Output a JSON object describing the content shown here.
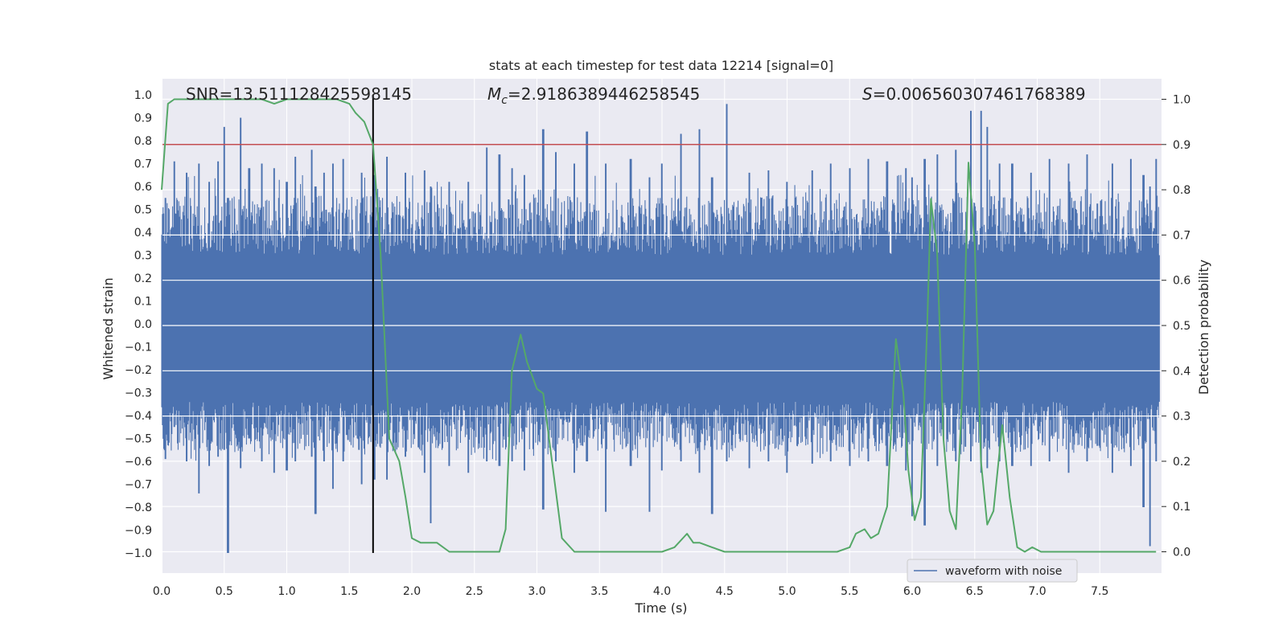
{
  "chart_data": {
    "type": "line",
    "title": "stats at each timestep for test data 12214 [signal=0]",
    "xlabel": "Time (s)",
    "ylabel": "Whitened strain",
    "y2label": "Detection probability",
    "xlim": [
      0,
      8
    ],
    "ylim": [
      -1.1,
      1.05
    ],
    "y2lim": [
      -0.045,
      1.045
    ],
    "xticks": [
      "0.0",
      "0.5",
      "1.0",
      "1.5",
      "2.0",
      "2.5",
      "3.0",
      "3.5",
      "4.0",
      "4.5",
      "5.0",
      "5.5",
      "6.0",
      "6.5",
      "7.0",
      "7.5"
    ],
    "yticks": [
      "1.0",
      "0.9",
      "0.8",
      "0.7",
      "0.6",
      "0.5",
      "0.4",
      "0.3",
      "0.2",
      "0.1",
      "0.0",
      "-0.1",
      "-0.2",
      "-0.3",
      "-0.4",
      "-0.5",
      "-0.6",
      "-0.7",
      "-0.8",
      "-0.9",
      "-1.0"
    ],
    "y2ticks": [
      "1.0",
      "0.9",
      "0.8",
      "0.7",
      "0.6",
      "0.5",
      "0.4",
      "0.3",
      "0.2",
      "0.1",
      "0.0"
    ],
    "grid": true,
    "legend": {
      "position": "lower-right",
      "entries": [
        "waveform with noise"
      ]
    },
    "annotations": {
      "snr": "SNR=13.511128425598145",
      "mc_symbol": "M",
      "mc_sub": "c",
      "mc_value": "=2.9186389446258545",
      "s_symbol": "S",
      "s_value": "=0.006560307461768389"
    },
    "threshold_line": {
      "axis": "right",
      "value": 0.9,
      "color": "#c44e52"
    },
    "marker_line": {
      "x": 1.69,
      "ymin": -1.0,
      "ymax": 1.0,
      "color": "#000000"
    },
    "colors": {
      "waveform": "#4c72b0",
      "probability": "#55a868",
      "background": "#eaeaf2",
      "grid": "#ffffff"
    },
    "series": [
      {
        "name": "waveform with noise",
        "axis": "left",
        "envelope_peaks": [
          {
            "t": 0.03,
            "upper": 0.55,
            "lower": -0.59
          },
          {
            "t": 0.1,
            "upper": 0.71,
            "lower": -0.45
          },
          {
            "t": 0.2,
            "upper": 0.66,
            "lower": -0.6
          },
          {
            "t": 0.3,
            "upper": 0.7,
            "lower": -0.74
          },
          {
            "t": 0.38,
            "upper": 0.62,
            "lower": -0.62
          },
          {
            "t": 0.45,
            "upper": 0.71,
            "lower": -0.58
          },
          {
            "t": 0.5,
            "upper": 0.86,
            "lower": -0.55
          },
          {
            "t": 0.53,
            "upper": 0.55,
            "lower": -1.0
          },
          {
            "t": 0.63,
            "upper": 0.9,
            "lower": -0.63
          },
          {
            "t": 0.7,
            "upper": 0.68,
            "lower": -0.5
          },
          {
            "t": 0.8,
            "upper": 0.7,
            "lower": -0.6
          },
          {
            "t": 0.9,
            "upper": 0.68,
            "lower": -0.65
          },
          {
            "t": 1.0,
            "upper": 0.62,
            "lower": -0.64
          },
          {
            "t": 1.07,
            "upper": 0.73,
            "lower": -0.6
          },
          {
            "t": 1.2,
            "upper": 0.76,
            "lower": -0.58
          },
          {
            "t": 1.23,
            "upper": 0.6,
            "lower": -0.83
          },
          {
            "t": 1.3,
            "upper": 0.66,
            "lower": -0.6
          },
          {
            "t": 1.37,
            "upper": 0.7,
            "lower": -0.72
          },
          {
            "t": 1.45,
            "upper": 0.72,
            "lower": -0.6
          },
          {
            "t": 1.6,
            "upper": 0.66,
            "lower": -0.7
          },
          {
            "t": 1.7,
            "upper": 0.65,
            "lower": -0.68
          },
          {
            "t": 1.8,
            "upper": 0.73,
            "lower": -0.68
          },
          {
            "t": 1.95,
            "upper": 0.66,
            "lower": -0.58
          },
          {
            "t": 2.1,
            "upper": 0.67,
            "lower": -0.65
          },
          {
            "t": 2.15,
            "upper": 0.6,
            "lower": -0.87
          },
          {
            "t": 2.3,
            "upper": 0.62,
            "lower": -0.62
          },
          {
            "t": 2.45,
            "upper": 0.62,
            "lower": -0.65
          },
          {
            "t": 2.6,
            "upper": 0.77,
            "lower": -0.6
          },
          {
            "t": 2.7,
            "upper": 0.74,
            "lower": -0.62
          },
          {
            "t": 2.8,
            "upper": 0.68,
            "lower": -0.6
          },
          {
            "t": 2.9,
            "upper": 0.65,
            "lower": -0.64
          },
          {
            "t": 3.05,
            "upper": 0.85,
            "lower": -0.81
          },
          {
            "t": 3.15,
            "upper": 0.75,
            "lower": -0.6
          },
          {
            "t": 3.3,
            "upper": 0.7,
            "lower": -0.65
          },
          {
            "t": 3.4,
            "upper": 0.84,
            "lower": -0.6
          },
          {
            "t": 3.55,
            "upper": 0.7,
            "lower": -0.82
          },
          {
            "t": 3.75,
            "upper": 0.72,
            "lower": -0.62
          },
          {
            "t": 3.9,
            "upper": 0.64,
            "lower": -0.82
          },
          {
            "t": 4.0,
            "upper": 0.7,
            "lower": -0.64
          },
          {
            "t": 4.15,
            "upper": 0.83,
            "lower": -0.6
          },
          {
            "t": 4.3,
            "upper": 0.85,
            "lower": -0.65
          },
          {
            "t": 4.4,
            "upper": 0.64,
            "lower": -0.83
          },
          {
            "t": 4.52,
            "upper": 0.96,
            "lower": -0.6
          },
          {
            "t": 4.7,
            "upper": 0.66,
            "lower": -0.63
          },
          {
            "t": 4.85,
            "upper": 0.67,
            "lower": -0.6
          },
          {
            "t": 5.0,
            "upper": 0.62,
            "lower": -0.65
          },
          {
            "t": 5.2,
            "upper": 0.67,
            "lower": -0.61
          },
          {
            "t": 5.35,
            "upper": 0.7,
            "lower": -0.6
          },
          {
            "t": 5.5,
            "upper": 0.68,
            "lower": -0.62
          },
          {
            "t": 5.65,
            "upper": 0.72,
            "lower": -0.6
          },
          {
            "t": 5.8,
            "upper": 0.71,
            "lower": -0.62
          },
          {
            "t": 5.95,
            "upper": 0.68,
            "lower": -0.64
          },
          {
            "t": 6.0,
            "upper": 0.64,
            "lower": -0.84
          },
          {
            "t": 6.1,
            "upper": 0.72,
            "lower": -0.88
          },
          {
            "t": 6.2,
            "upper": 0.74,
            "lower": -0.62
          },
          {
            "t": 6.35,
            "upper": 0.76,
            "lower": -0.6
          },
          {
            "t": 6.47,
            "upper": 0.93,
            "lower": -0.6
          },
          {
            "t": 6.55,
            "upper": 0.93,
            "lower": -0.65
          },
          {
            "t": 6.6,
            "upper": 0.86,
            "lower": -0.63
          },
          {
            "t": 6.7,
            "upper": 0.7,
            "lower": -0.6
          },
          {
            "t": 6.8,
            "upper": 0.7,
            "lower": -0.62
          },
          {
            "t": 6.95,
            "upper": 0.66,
            "lower": -0.62
          },
          {
            "t": 7.1,
            "upper": 0.72,
            "lower": -0.6
          },
          {
            "t": 7.25,
            "upper": 0.7,
            "lower": -0.65
          },
          {
            "t": 7.4,
            "upper": 0.74,
            "lower": -0.6
          },
          {
            "t": 7.6,
            "upper": 0.7,
            "lower": -0.65
          },
          {
            "t": 7.75,
            "upper": 0.72,
            "lower": -0.62
          },
          {
            "t": 7.85,
            "upper": 0.65,
            "lower": -0.8
          },
          {
            "t": 7.9,
            "upper": 0.6,
            "lower": -0.97
          },
          {
            "t": 7.95,
            "upper": 0.72,
            "lower": -0.6
          }
        ]
      },
      {
        "name": "",
        "axis": "right",
        "t": [
          0.0,
          0.05,
          0.1,
          0.2,
          0.3,
          0.4,
          0.5,
          0.6,
          0.7,
          0.8,
          0.9,
          1.0,
          1.1,
          1.2,
          1.3,
          1.4,
          1.5,
          1.55,
          1.62,
          1.69,
          1.75,
          1.82,
          1.9,
          1.95,
          2.0,
          2.07,
          2.15,
          2.2,
          2.3,
          2.4,
          2.5,
          2.6,
          2.7,
          2.75,
          2.8,
          2.87,
          2.92,
          3.0,
          3.05,
          3.2,
          3.3,
          3.4,
          3.5,
          3.6,
          3.7,
          3.8,
          3.9,
          4.0,
          4.1,
          4.2,
          4.25,
          4.3,
          4.4,
          4.5,
          4.6,
          4.7,
          4.8,
          4.9,
          5.0,
          5.1,
          5.2,
          5.3,
          5.4,
          5.5,
          5.55,
          5.62,
          5.67,
          5.73,
          5.8,
          5.87,
          5.93,
          5.97,
          6.02,
          6.07,
          6.12,
          6.15,
          6.2,
          6.25,
          6.3,
          6.35,
          6.4,
          6.45,
          6.5,
          6.55,
          6.6,
          6.65,
          6.72,
          6.78,
          6.84,
          6.9,
          6.96,
          7.03,
          7.1,
          7.2,
          7.3,
          7.4,
          7.5,
          7.6,
          7.7,
          7.8,
          7.9,
          7.95
        ],
        "values": [
          0.8,
          0.99,
          1.0,
          1.0,
          1.0,
          1.0,
          1.0,
          1.0,
          1.0,
          1.0,
          0.99,
          1.0,
          1.0,
          1.0,
          1.0,
          1.0,
          0.99,
          0.97,
          0.95,
          0.9,
          0.66,
          0.25,
          0.2,
          0.12,
          0.03,
          0.02,
          0.02,
          0.02,
          0.0,
          0.0,
          0.0,
          0.0,
          0.0,
          0.05,
          0.4,
          0.48,
          0.42,
          0.36,
          0.35,
          0.03,
          0.0,
          0.0,
          0.0,
          0.0,
          0.0,
          0.0,
          0.0,
          0.0,
          0.01,
          0.04,
          0.02,
          0.02,
          0.01,
          0.0,
          0.0,
          0.0,
          0.0,
          0.0,
          0.0,
          0.0,
          0.0,
          0.0,
          0.0,
          0.01,
          0.04,
          0.05,
          0.03,
          0.04,
          0.1,
          0.47,
          0.35,
          0.18,
          0.07,
          0.12,
          0.5,
          0.78,
          0.66,
          0.25,
          0.09,
          0.05,
          0.35,
          0.86,
          0.68,
          0.2,
          0.06,
          0.09,
          0.28,
          0.12,
          0.01,
          0.0,
          0.01,
          0.0,
          0.0,
          0.0,
          0.0,
          0.0,
          0.0,
          0.0,
          0.0,
          0.0,
          0.0,
          0.0
        ]
      }
    ]
  }
}
